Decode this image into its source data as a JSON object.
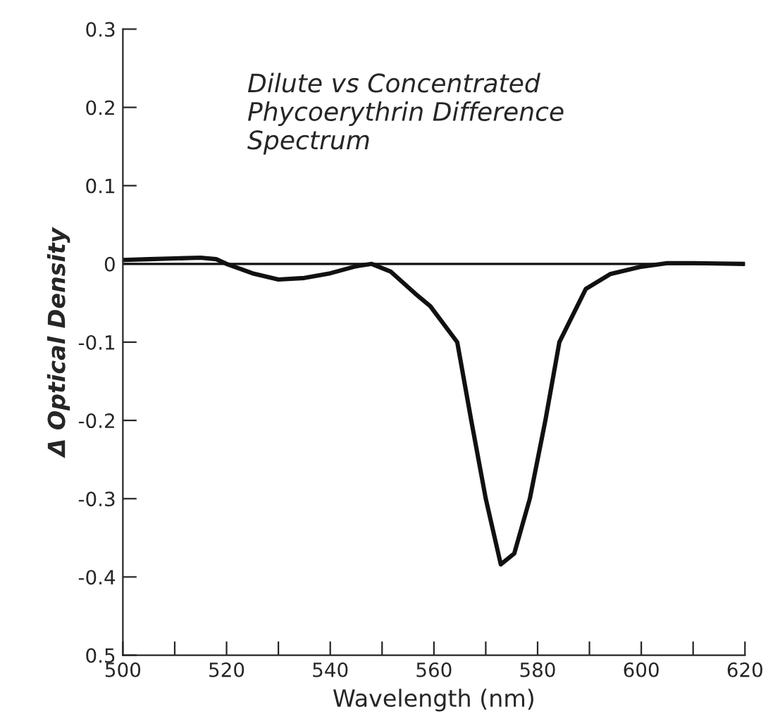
{
  "chart_data": {
    "type": "line",
    "title": "Dilute vs Concentrated\nPhycoerythrin Difference\nSpectrum",
    "xlabel": "Wavelength (nm)",
    "ylabel": "Δ Optical Density",
    "x": [
      500,
      505,
      510,
      515,
      518,
      520,
      525,
      530,
      535,
      540,
      545,
      548,
      551.7,
      556.4,
      559.3,
      564.5,
      567.2,
      570.0,
      572.9,
      575.5,
      578.5,
      581.5,
      584.2,
      589.3,
      594,
      599.7,
      605,
      610,
      620
    ],
    "series": [
      {
        "color": "#111111",
        "values": [
          0.005,
          0.006,
          0.007,
          0.008,
          0.006,
          0.0,
          -0.012,
          -0.02,
          -0.018,
          -0.012,
          -0.003,
          0.0,
          -0.01,
          -0.038,
          -0.054,
          -0.1,
          -0.2,
          -0.3,
          -0.384,
          -0.37,
          -0.3,
          -0.2,
          -0.1,
          -0.032,
          -0.013,
          -0.004,
          0.001,
          0.001,
          0.0
        ]
      }
    ],
    "xlim": [
      500,
      620
    ],
    "ylim": [
      -0.5,
      0.3
    ],
    "xticks": [
      500,
      {
        "value": 510,
        "label": null
      },
      520,
      {
        "value": 530,
        "label": null
      },
      540,
      {
        "value": 550,
        "label": null
      },
      560,
      {
        "value": 570,
        "label": null
      },
      580,
      {
        "value": 590,
        "label": null
      },
      600,
      {
        "value": 610,
        "label": null
      },
      620
    ],
    "yticks": [
      {
        "value": -0.5,
        "label": "0.5"
      },
      -0.4,
      -0.3,
      -0.2,
      -0.1,
      0,
      0.1,
      0.2,
      0.3
    ],
    "ref_lines": [
      {
        "axis": "y",
        "value": 0,
        "color": "#111111"
      }
    ],
    "grid": false,
    "legend": false,
    "marker": "none",
    "line_style": "solid"
  }
}
